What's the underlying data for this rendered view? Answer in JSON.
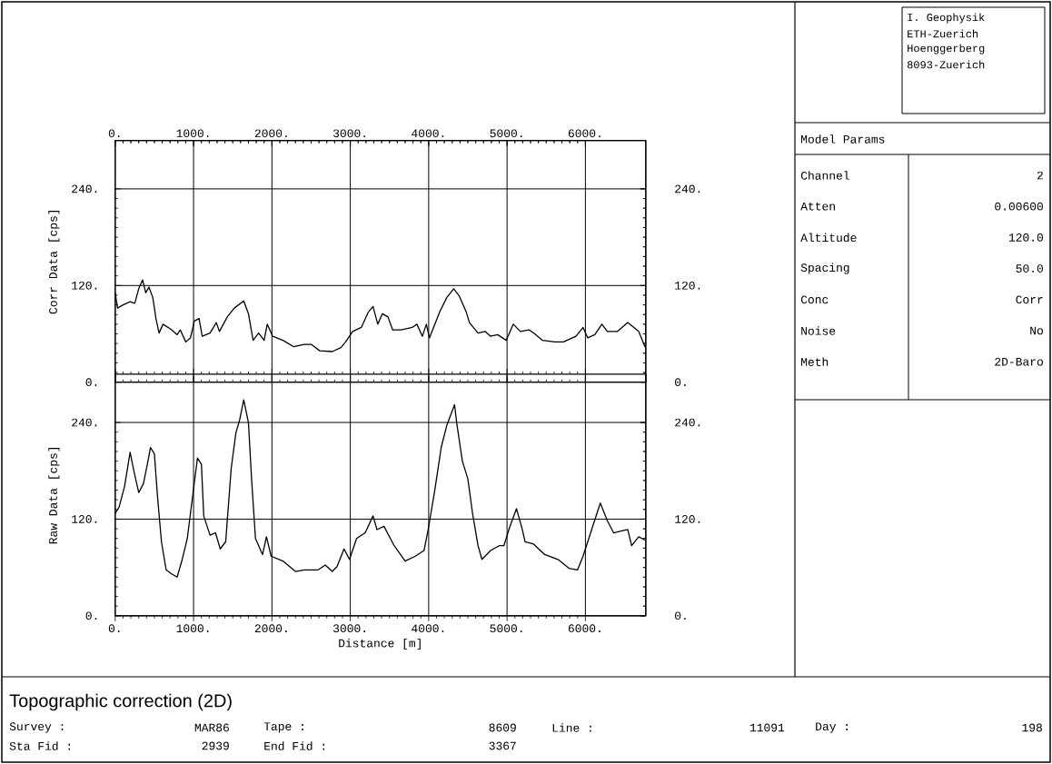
{
  "chart_data": [
    {
      "type": "line",
      "ylabel": "Corr Data [cps]",
      "color": "#000000",
      "grid": true,
      "x": [
        0,
        30,
        100,
        190,
        250,
        300,
        350,
        390,
        430,
        480,
        520,
        560,
        610,
        720,
        790,
        830,
        900,
        960,
        1010,
        1070,
        1110,
        1210,
        1290,
        1330,
        1430,
        1520,
        1640,
        1700,
        1760,
        1830,
        1900,
        1940,
        2010,
        2140,
        2280,
        2410,
        2500,
        2610,
        2770,
        2880,
        2940,
        3030,
        3140,
        3230,
        3290,
        3350,
        3410,
        3480,
        3540,
        3650,
        3790,
        3850,
        3920,
        3970,
        4010,
        4140,
        4230,
        4320,
        4390,
        4480,
        4520,
        4630,
        4720,
        4790,
        4880,
        4990,
        5080,
        5170,
        5280,
        5340,
        5450,
        5610,
        5720,
        5880,
        5970,
        6030,
        6120,
        6210,
        6280,
        6410,
        6540,
        6680,
        6760
      ],
      "values": [
        111,
        92,
        96,
        100,
        98,
        116,
        127,
        111,
        118,
        105,
        79,
        61,
        72,
        65,
        59,
        65,
        50,
        55,
        76,
        79,
        57,
        61,
        74,
        63,
        81,
        92,
        101,
        85,
        52,
        61,
        52,
        72,
        57,
        52,
        44,
        47,
        47,
        39,
        38,
        43,
        50,
        63,
        68,
        87,
        94,
        72,
        85,
        81,
        65,
        65,
        68,
        72,
        57,
        72,
        55,
        87,
        105,
        116,
        107,
        87,
        74,
        61,
        63,
        57,
        59,
        52,
        72,
        63,
        65,
        61,
        52,
        50,
        50,
        57,
        68,
        55,
        59,
        72,
        63,
        63,
        74,
        63,
        44
      ],
      "xlim": [
        0,
        6770
      ],
      "x2lim": [
        0,
        6770
      ],
      "x2ticks": [
        {
          "value": 0,
          "label": "0."
        },
        {
          "value": 1000,
          "label": "1000."
        },
        {
          "value": 2000,
          "label": "2000."
        },
        {
          "value": 3000,
          "label": "3000."
        },
        {
          "value": 4000,
          "label": "4000."
        },
        {
          "value": 5000,
          "label": "5000."
        },
        {
          "value": 6000,
          "label": "6000."
        }
      ],
      "ylim": [
        0,
        300
      ],
      "yticks": [
        {
          "value": 0,
          "label": "0."
        },
        {
          "value": 120,
          "label": "120."
        },
        {
          "value": 240,
          "label": "240."
        }
      ],
      "y2lim": [
        0,
        300
      ],
      "y2ticks": [
        {
          "value": 0,
          "label": "0."
        },
        {
          "value": 120,
          "label": "120."
        },
        {
          "value": 240,
          "label": "240."
        }
      ]
    },
    {
      "type": "line",
      "ylabel": "Raw Data [cps]",
      "xlabel": "Distance [m]",
      "color": "#000000",
      "grid": true,
      "x": [
        0,
        50,
        120,
        190,
        240,
        300,
        360,
        410,
        450,
        500,
        540,
        590,
        650,
        720,
        790,
        850,
        920,
        960,
        1050,
        1100,
        1130,
        1210,
        1280,
        1340,
        1410,
        1480,
        1540,
        1590,
        1640,
        1700,
        1740,
        1790,
        1880,
        1930,
        1990,
        2140,
        2300,
        2410,
        2590,
        2680,
        2770,
        2830,
        2920,
        2990,
        3080,
        3190,
        3290,
        3340,
        3430,
        3560,
        3700,
        3830,
        3940,
        3990,
        4080,
        4160,
        4230,
        4330,
        4360,
        4430,
        4500,
        4560,
        4630,
        4680,
        4790,
        4900,
        4960,
        5030,
        5120,
        5190,
        5230,
        5340,
        5480,
        5650,
        5790,
        5900,
        5970,
        6080,
        6190,
        6280,
        6360,
        6450,
        6540,
        6590,
        6680,
        6760
      ],
      "values": [
        127,
        135,
        161,
        203,
        179,
        153,
        164,
        188,
        209,
        201,
        148,
        92,
        57,
        52,
        48,
        68,
        96,
        127,
        196,
        188,
        124,
        100,
        103,
        83,
        92,
        183,
        227,
        244,
        268,
        240,
        170,
        96,
        76,
        98,
        74,
        68,
        55,
        57,
        57,
        63,
        55,
        61,
        83,
        70,
        96,
        103,
        124,
        107,
        111,
        87,
        68,
        74,
        81,
        105,
        157,
        209,
        236,
        262,
        238,
        192,
        170,
        127,
        87,
        70,
        81,
        87,
        87,
        109,
        133,
        109,
        92,
        89,
        76,
        70,
        59,
        57,
        74,
        107,
        140,
        118,
        103,
        105,
        107,
        87,
        98,
        94
      ],
      "xlim": [
        0,
        6770
      ],
      "xticks": [
        {
          "value": 0,
          "label": "0."
        },
        {
          "value": 1000,
          "label": "1000."
        },
        {
          "value": 2000,
          "label": "2000."
        },
        {
          "value": 3000,
          "label": "3000."
        },
        {
          "value": 4000,
          "label": "4000."
        },
        {
          "value": 5000,
          "label": "5000."
        },
        {
          "value": 6000,
          "label": "6000."
        }
      ],
      "ylim": [
        0,
        300
      ],
      "yticks": [
        {
          "value": 0,
          "label": "0."
        },
        {
          "value": 120,
          "label": "120."
        },
        {
          "value": 240,
          "label": "240."
        }
      ],
      "y2lim": [
        0,
        300
      ],
      "y2ticks": [
        {
          "value": 0,
          "label": "0."
        },
        {
          "value": 120,
          "label": "120."
        },
        {
          "value": 240,
          "label": "240."
        }
      ]
    },
    {
      "type": "other",
      "annotations": [
        "I. Geophysik",
        "ETH-Zuerich",
        "Hoenggerberg",
        "8093-Zuerich"
      ]
    },
    {
      "type": "other",
      "title": "Model Params",
      "annotations": [
        "Channel",
        "2",
        "Atten",
        "0.00600",
        "Altitude",
        "120.0",
        "Spacing",
        "50.0",
        "Conc",
        "Corr",
        "Noise",
        "No",
        "Meth",
        "2D-Baro"
      ]
    },
    {
      "type": "other",
      "title": "Topographic correction (2D)",
      "annotations": [
        "Survey :",
        "MAR86",
        "Tape :",
        "8609",
        "Line :",
        "11091",
        "Day :",
        "198",
        "Sta Fid :",
        "2939",
        "End Fid :",
        "3367"
      ]
    }
  ]
}
